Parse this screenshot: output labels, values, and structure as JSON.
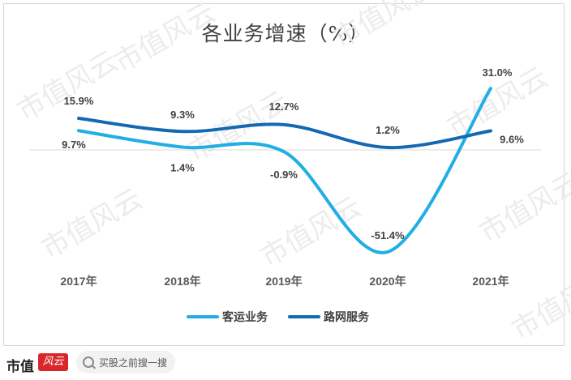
{
  "chart_data": {
    "type": "line",
    "title": "各业务增速（%）",
    "categories": [
      "2017年",
      "2018年",
      "2019年",
      "2020年",
      "2021年"
    ],
    "ylim": [
      -55,
      35
    ],
    "series": [
      {
        "name": "客运业务",
        "color": "#21aee5",
        "values": [
          9.7,
          1.4,
          -0.9,
          -51.4,
          31.0
        ],
        "labels": [
          "9.7%",
          "1.4%",
          "-0.9%",
          "-51.4%",
          "31.0%"
        ]
      },
      {
        "name": "路网服务",
        "color": "#1469b3",
        "values": [
          15.9,
          9.3,
          12.7,
          1.2,
          9.6
        ],
        "labels": [
          "15.9%",
          "9.3%",
          "12.7%",
          "1.2%",
          "9.6%"
        ]
      }
    ],
    "legend_position": "bottom",
    "grid": false
  },
  "watermark": "市值风云",
  "footer": {
    "logo_text": "市值",
    "logo_mark": "风云",
    "search_placeholder": "买股之前搜一搜"
  }
}
